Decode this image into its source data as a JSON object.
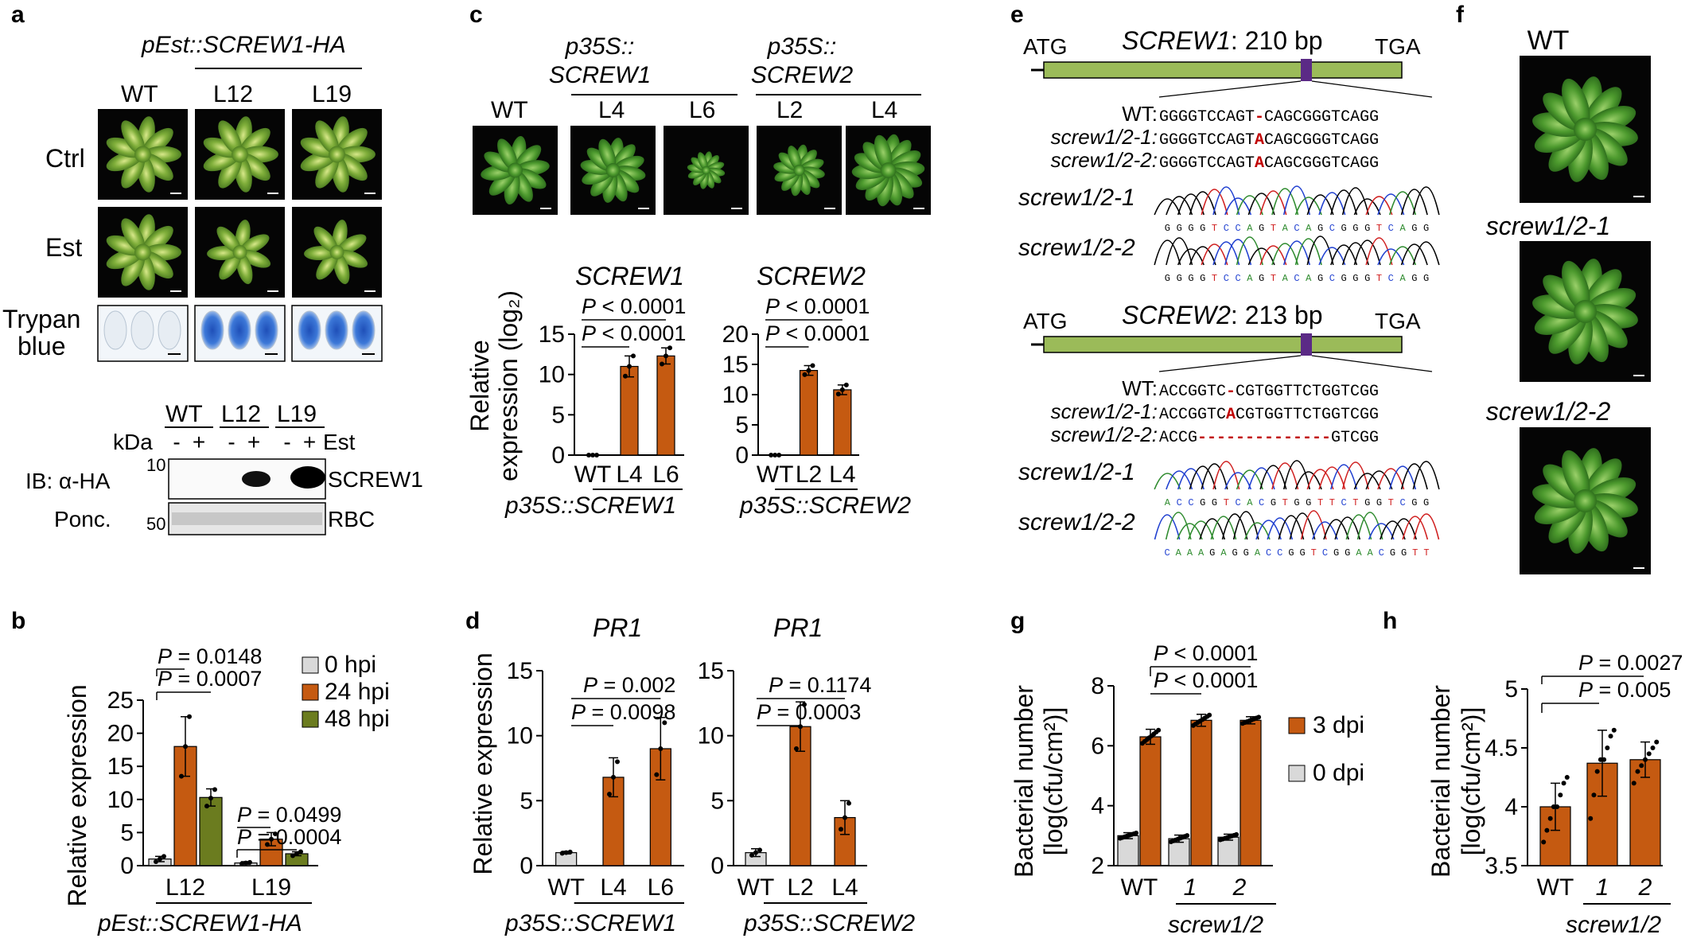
{
  "panels": {
    "a": {
      "label": "a",
      "construct": "pEst::SCREW1-HA",
      "lines": [
        "WT",
        "L12",
        "L19"
      ],
      "rows": [
        "Ctrl",
        "Est",
        "Trypan blue"
      ],
      "blot": {
        "lines": [
          "WT",
          "L12",
          "L19"
        ],
        "kda_label": "kDa",
        "treat": [
          "-",
          "+",
          "-",
          "+",
          "-",
          "+"
        ],
        "est_label": "Est",
        "ib_label": "IB: α-HA",
        "ponc_label": "Ponc.",
        "marker_10": "10",
        "marker_50": "50",
        "band1": "SCREW1",
        "band2": "RBC"
      }
    },
    "b": {
      "label": "b",
      "ylabel": "Relative expression",
      "xgroup_label": "pEst::SCREW1-HA",
      "pvals": [
        "P = 0.0148",
        "P = 0.0007",
        "P = 0.0499",
        "P = 0.0004"
      ],
      "legend": [
        "0 hpi",
        "24 hpi",
        "48 hpi"
      ],
      "yticks": [
        "0",
        "5",
        "10",
        "15",
        "20",
        "25"
      ]
    },
    "c": {
      "label": "c",
      "constructs": [
        "p35S::",
        "SCREW1",
        "p35S::",
        "SCREW2"
      ],
      "lines": [
        "WT",
        "L4",
        "L6",
        "L2",
        "L4"
      ],
      "ylabel_1": "Relative",
      "ylabel_2": "expression (log₂)",
      "left_title": "SCREW1",
      "right_title": "SCREW2",
      "left_pvals": [
        "P < 0.0001",
        "P < 0.0001"
      ],
      "right_pvals": [
        "P < 0.0001",
        "P < 0.0001"
      ],
      "left_xlabel": "p35S::SCREW1",
      "right_xlabel": "p35S::SCREW2"
    },
    "d": {
      "label": "d",
      "ylabel": "Relative expression",
      "left_title": "PR1",
      "right_title": "PR1",
      "left_pvals": [
        "P = 0.002",
        "P = 0.0098"
      ],
      "right_pvals": [
        "P = 0.1174",
        "P = 0.0003"
      ],
      "left_xlabel": "p35S::SCREW1",
      "right_xlabel": "p35S::SCREW2"
    },
    "e": {
      "label": "e",
      "gene1": {
        "atg": "ATG",
        "tga": "TGA",
        "name": "SCREW1",
        "len": ": 210 bp",
        "wt_label": "WT:",
        "m1_label": "screw1/2-1:",
        "m2_label": "screw1/2-2:",
        "wt_a": "GGGGTCCAGT",
        "wt_gap": "-",
        "wt_b": "CAGCGGGTCAGG",
        "m1_a": "GGGGTCCAGT",
        "m1_ins": "A",
        "m1_b": "CAGCGGGTCAGG",
        "m2_a": "GGGGTCCAGT",
        "m2_ins": "A",
        "m2_b": "CAGCGGGTCAGG",
        "trace1_label": "screw1/2-1",
        "trace1_seq": "GGGGTCCAGTACAGCGGGTCAGG",
        "trace2_label": "screw1/2-2",
        "trace2_seq": "GGGGTCCAGTACAGCGGGTCAGG"
      },
      "gene2": {
        "atg": "ATG",
        "tga": "TGA",
        "name": "SCREW2",
        "len": ": 213 bp",
        "wt_label": "WT:",
        "m1_label": "screw1/2-1:",
        "m2_label": "screw1/2-2:",
        "wt_a": "ACCGGTC",
        "wt_gap": "-",
        "wt_b": "CGTGGTTCTGGTCGG",
        "m1_a": "ACCGGTC",
        "m1_ins": "A",
        "m1_b": "CGTGGTTCTGGTCGG",
        "m2_a": "ACCG",
        "m2_del": "--------------",
        "m2_b": "GTCGG",
        "trace1_label": "screw1/2-1",
        "trace1_seq": "ACCGGTCACGTGGTTCTGGTCGG",
        "trace2_label": "screw1/2-2",
        "trace2_seq": "CAAAGAGGACCGGTCGGAACGGTT"
      }
    },
    "f": {
      "label": "f",
      "rows": [
        "WT",
        "screw1/2-1",
        "screw1/2-2"
      ]
    },
    "g": {
      "label": "g",
      "ylabel_1": "Bacterial number",
      "ylabel_2": "[log(cfu/cm²)]",
      "pvals": [
        "P < 0.0001",
        "P < 0.0001"
      ],
      "legend": [
        "3 dpi",
        "0 dpi"
      ],
      "xgroup_label": "screw1/2",
      "yticks": [
        "2",
        "4",
        "6",
        "8"
      ]
    },
    "h": {
      "label": "h",
      "ylabel_1": "Bacterial number",
      "ylabel_2": "[log(cfu/cm²)]",
      "pvals": [
        "P = 0.0027",
        "P = 0.005"
      ],
      "xgroup_label": "screw1/2",
      "yticks": [
        "3.5",
        "4.0",
        "4.5",
        "5"
      ]
    }
  },
  "chart_data": [
    {
      "type": "bar",
      "panel": "b",
      "categories": [
        "L12",
        "L19"
      ],
      "series": [
        {
          "name": "0 hpi",
          "values": [
            1.0,
            0.4
          ],
          "errors": [
            0.4,
            0.2
          ],
          "points": [
            [
              0.6,
              1.0,
              1.4
            ],
            [
              0.3,
              0.4,
              0.5
            ]
          ]
        },
        {
          "name": "24 hpi",
          "values": [
            18.0,
            4.0
          ],
          "errors": [
            4.5,
            1.0
          ],
          "points": [
            [
              13.5,
              18.0,
              22.5
            ],
            [
              3.2,
              4.0,
              4.8
            ]
          ]
        },
        {
          "name": "48 hpi",
          "values": [
            10.3,
            1.8
          ],
          "errors": [
            1.3,
            0.3
          ],
          "points": [
            [
              9.0,
              10.2,
              11.5
            ],
            [
              1.5,
              1.8,
              2.1
            ]
          ]
        }
      ],
      "ylim": [
        0,
        25
      ],
      "yticks": [
        0,
        5,
        10,
        15,
        20,
        25
      ],
      "colors": [
        "#d9d9d9",
        "#c55a11",
        "#6b7c1f"
      ]
    },
    {
      "type": "bar",
      "panel": "c-left",
      "categories": [
        "WT",
        "L4",
        "L6"
      ],
      "values": [
        0,
        11.0,
        12.3
      ],
      "errors": [
        0,
        1.3,
        1.0
      ],
      "points": [
        [
          0,
          0,
          0
        ],
        [
          9.8,
          11.0,
          12.3
        ],
        [
          11.3,
          12.3,
          13.3
        ]
      ],
      "ylim": [
        0,
        15
      ],
      "yticks": [
        0,
        5,
        10,
        15
      ],
      "color": "#c55a11"
    },
    {
      "type": "bar",
      "panel": "c-right",
      "categories": [
        "WT",
        "L2",
        "L4"
      ],
      "values": [
        0,
        14.0,
        10.8
      ],
      "errors": [
        0,
        0.8,
        0.8
      ],
      "points": [
        [
          0,
          0,
          0
        ],
        [
          13.3,
          14.0,
          14.8
        ],
        [
          10.1,
          10.8,
          11.6
        ]
      ],
      "ylim": [
        0,
        20
      ],
      "yticks": [
        0,
        5,
        10,
        15,
        20
      ],
      "color": "#c55a11"
    },
    {
      "type": "bar",
      "panel": "d-left",
      "categories": [
        "WT",
        "L4",
        "L6"
      ],
      "values": [
        1.0,
        6.8,
        9.0
      ],
      "errors": [
        0.1,
        1.5,
        2.4
      ],
      "points": [
        [
          0.95,
          1.0,
          1.05
        ],
        [
          5.5,
          6.8,
          8.0
        ],
        [
          7.0,
          9.0,
          11.0
        ]
      ],
      "ylim": [
        0,
        15
      ],
      "yticks": [
        0,
        5,
        10,
        15
      ],
      "colors": [
        "#d9d9d9",
        "#c55a11",
        "#c55a11"
      ]
    },
    {
      "type": "bar",
      "panel": "d-right",
      "categories": [
        "WT",
        "L2",
        "L4"
      ],
      "values": [
        1.0,
        10.7,
        3.7
      ],
      "errors": [
        0.3,
        1.9,
        1.3
      ],
      "points": [
        [
          0.8,
          1.0,
          1.2
        ],
        [
          9.0,
          10.7,
          12.4
        ],
        [
          2.8,
          3.7,
          4.8
        ]
      ],
      "ylim": [
        0,
        15
      ],
      "yticks": [
        0,
        5,
        10,
        15
      ],
      "colors": [
        "#d9d9d9",
        "#c55a11",
        "#c55a11"
      ]
    },
    {
      "type": "bar",
      "panel": "g",
      "categories": [
        "WT",
        "1",
        "2"
      ],
      "series": [
        {
          "name": "0 dpi",
          "values": [
            3.0,
            2.9,
            2.95
          ],
          "errors": [
            0.1,
            0.12,
            0.1
          ]
        },
        {
          "name": "3 dpi",
          "values": [
            6.3,
            6.85,
            6.85
          ],
          "errors": [
            0.25,
            0.2,
            0.12
          ]
        }
      ],
      "ylim": [
        2,
        8
      ],
      "yticks": [
        2,
        4,
        6,
        8
      ],
      "colors": [
        "#d9d9d9",
        "#c55a11"
      ]
    },
    {
      "type": "bar",
      "panel": "h",
      "categories": [
        "WT",
        "1",
        "2"
      ],
      "values": [
        4.0,
        4.37,
        4.4
      ],
      "errors": [
        0.2,
        0.28,
        0.15
      ],
      "points": [
        [
          3.7,
          3.8,
          3.9,
          4.0,
          4.0,
          4.1,
          4.2,
          4.25
        ],
        [
          3.9,
          4.1,
          4.3,
          4.4,
          4.4,
          4.5,
          4.6,
          4.65
        ],
        [
          4.2,
          4.3,
          4.35,
          4.4,
          4.45,
          4.5,
          4.55
        ]
      ],
      "ylim": [
        3.5,
        5
      ],
      "yticks": [
        3.5,
        4.0,
        4.5,
        5
      ],
      "color": "#c55a11"
    }
  ]
}
